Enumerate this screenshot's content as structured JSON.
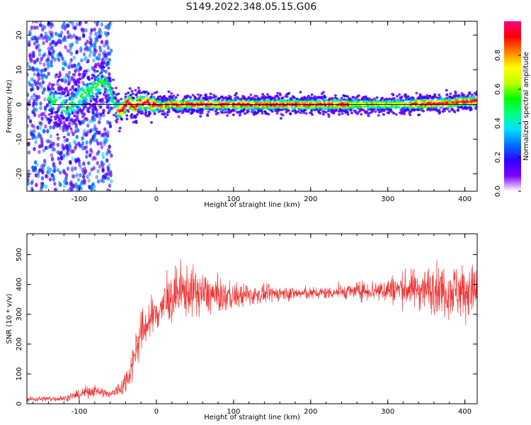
{
  "figure_title": "S149.2022.348.05.15.G06",
  "chart_data": [
    {
      "type": "heatmap",
      "title": "",
      "xlabel": "Height of straight line (km)",
      "ylabel": "Frequency (Hz)",
      "xlim": [
        -168,
        416
      ],
      "ylim": [
        -25,
        24
      ],
      "xticks": [
        -100,
        0,
        100,
        200,
        300,
        400
      ],
      "yticks": [
        -20,
        -10,
        0,
        10,
        20
      ],
      "colorbar": {
        "label": "Normalized spectral amplitude",
        "ticks": [
          0.0,
          0.2,
          0.4,
          0.6,
          0.8
        ],
        "range": [
          0,
          1
        ],
        "colormap": [
          "#ffffff",
          "#7b00ff",
          "#3000ff",
          "#0070ff",
          "#00e0ff",
          "#00ff80",
          "#00ff00",
          "#c0ff00",
          "#ffff00",
          "#ff8000",
          "#ff0000",
          "#ff0080"
        ]
      },
      "ridge": {
        "x": [
          -135,
          -125,
          -115,
          -105,
          -95,
          -85,
          -75,
          -68,
          -62,
          -57,
          -52,
          -47,
          -42,
          -37,
          -32,
          -27,
          -22,
          -17,
          -12,
          -7,
          0,
          10,
          20,
          30,
          40,
          50,
          60,
          80,
          100,
          150,
          200,
          250,
          300,
          350,
          380,
          400,
          416
        ],
        "y": [
          1,
          0,
          -1,
          1,
          3,
          4,
          6,
          7,
          5,
          2,
          -1,
          -2,
          -1,
          1,
          0,
          -1,
          1,
          0,
          1,
          0,
          0,
          -0.5,
          0.3,
          -0.3,
          0.2,
          0,
          0.1,
          0,
          0,
          0,
          0,
          0,
          0,
          0.2,
          0.4,
          0.8,
          1
        ]
      },
      "reference_line_y": 0
    },
    {
      "type": "line",
      "title": "",
      "xlabel": "Height of straight line (km)",
      "ylabel": "SNR (10 * v/v)",
      "xlim": [
        -168,
        416
      ],
      "ylim": [
        0,
        570
      ],
      "xticks": [
        -100,
        0,
        100,
        200,
        300,
        400
      ],
      "yticks": [
        0,
        100,
        200,
        300,
        400,
        500
      ],
      "color": "#ee3333",
      "series": [
        {
          "envelope_x": [
            -168,
            -120,
            -100,
            -90,
            -80,
            -60,
            -45,
            -35,
            -28,
            -22,
            -15,
            -5,
            5,
            15,
            25,
            40,
            60,
            80,
            100,
            130,
            160,
            200,
            240,
            280,
            320,
            360,
            390,
            416
          ],
          "mean": [
            15,
            18,
            30,
            40,
            45,
            30,
            55,
            100,
            170,
            220,
            260,
            290,
            320,
            345,
            360,
            380,
            370,
            360,
            360,
            365,
            370,
            370,
            375,
            380,
            385,
            385,
            380,
            375
          ],
          "spread": [
            8,
            10,
            15,
            20,
            20,
            15,
            30,
            45,
            60,
            70,
            75,
            70,
            70,
            75,
            85,
            85,
            70,
            55,
            45,
            30,
            25,
            20,
            22,
            35,
            55,
            80,
            90,
            90
          ]
        }
      ]
    }
  ]
}
